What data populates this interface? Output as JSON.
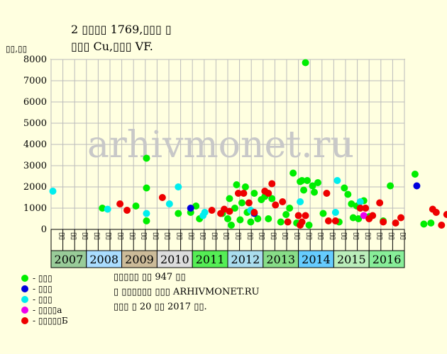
{
  "chart_data": {
    "type": "scatter",
    "title_lines": [
      "2 ▯▯▯▯ 1769,▯▯▯ ▯",
      "▯▯▯ Cu,▯▯▯ VF."
    ],
    "ylabel": "▯▯,▯▯",
    "ylim": [
      0,
      8000
    ],
    "yticks": [
      0,
      1000,
      2000,
      3000,
      4000,
      5000,
      6000,
      7000,
      8000
    ],
    "grid": true,
    "watermark": "arhivmonet.ru",
    "months": [
      "▯▯",
      "▯▯",
      "▯▯",
      "▯▯",
      "▯▯",
      "▯▯",
      "▯▯",
      "▯▯",
      "▯▯",
      "▯▯",
      "▯▯",
      "▯▯",
      "▯▯",
      "▯▯",
      "▯▯",
      "▯▯",
      "▯▯",
      "▯▯",
      "▯▯",
      "▯▯",
      "▯▯",
      "▯▯",
      "▯▯",
      "▯▯",
      "▯▯",
      "▯▯",
      "▯▯",
      "▯▯",
      "▯▯",
      "▯▯"
    ],
    "years": [
      {
        "label": "2007",
        "color": "#99cc99"
      },
      {
        "label": "2008",
        "color": "#aaddff"
      },
      {
        "label": "2009",
        "color": "#ccbb99"
      },
      {
        "label": "2010",
        "color": "#dddddd"
      },
      {
        "label": "2011",
        "color": "#55ee55"
      },
      {
        "label": "2012",
        "color": "#aaddee"
      },
      {
        "label": "2013",
        "color": "#88dd88"
      },
      {
        "label": "2014",
        "color": "#66ccff"
      },
      {
        "label": "2015",
        "color": "#bbeebb"
      },
      {
        "label": "2016",
        "color": "#88ee99"
      }
    ],
    "series": [
      {
        "name": "- ▯▯▯",
        "color": "#00ee00",
        "points": [
          [
            1.45,
            1000
          ],
          [
            2.4,
            1100
          ],
          [
            2.7,
            1950
          ],
          [
            2.7,
            3350
          ],
          [
            2.7,
            400
          ],
          [
            3.6,
            750
          ],
          [
            3.95,
            800
          ],
          [
            4.1,
            1100
          ],
          [
            4.2,
            500
          ],
          [
            4.85,
            750
          ],
          [
            5.0,
            500
          ],
          [
            5.05,
            1450
          ],
          [
            5.1,
            200
          ],
          [
            5.2,
            1000
          ],
          [
            5.25,
            2100
          ],
          [
            5.35,
            450
          ],
          [
            5.4,
            1250
          ],
          [
            5.5,
            2000
          ],
          [
            5.55,
            800
          ],
          [
            5.65,
            350
          ],
          [
            5.75,
            1700
          ],
          [
            5.85,
            500
          ],
          [
            5.95,
            1400
          ],
          [
            6.05,
            1550
          ],
          [
            6.15,
            500
          ],
          [
            6.25,
            1450
          ],
          [
            6.5,
            350
          ],
          [
            6.65,
            700
          ],
          [
            6.75,
            1000
          ],
          [
            6.85,
            2650
          ],
          [
            6.95,
            300
          ],
          [
            7.05,
            2250
          ],
          [
            7.1,
            2300
          ],
          [
            7.15,
            1850
          ],
          [
            7.2,
            7850
          ],
          [
            7.25,
            2300
          ],
          [
            7.3,
            200
          ],
          [
            7.4,
            2050
          ],
          [
            7.45,
            1750
          ],
          [
            7.55,
            2200
          ],
          [
            7.7,
            750
          ],
          [
            8.15,
            350
          ],
          [
            8.3,
            1950
          ],
          [
            8.4,
            1650
          ],
          [
            8.5,
            1200
          ],
          [
            8.55,
            550
          ],
          [
            8.65,
            1100
          ],
          [
            8.7,
            500
          ],
          [
            8.85,
            1350
          ],
          [
            9.0,
            600
          ],
          [
            9.4,
            400
          ],
          [
            9.6,
            2050
          ],
          [
            10.3,
            2600
          ],
          [
            10.55,
            250
          ],
          [
            10.75,
            300
          ]
        ]
      },
      {
        "name": "- ▯▯▯",
        "color": "#0000dd",
        "points": [
          [
            3.95,
            1000
          ],
          [
            5.75,
            750
          ],
          [
            10.35,
            2050
          ]
        ]
      },
      {
        "name": "- ▯▯▯",
        "color": "#00eeee",
        "points": [
          [
            0.05,
            1800
          ],
          [
            1.6,
            950
          ],
          [
            2.7,
            750
          ],
          [
            3.35,
            1200
          ],
          [
            3.6,
            2000
          ],
          [
            4.3,
            650
          ],
          [
            4.35,
            800
          ],
          [
            5.65,
            900
          ],
          [
            7.05,
            1300
          ],
          [
            8.05,
            800
          ],
          [
            8.1,
            2300
          ],
          [
            8.75,
            1300
          ]
        ]
      },
      {
        "name": "- ▯▯▯▯а",
        "color": "#ee00ee",
        "points": [
          [
            8.85,
            650
          ]
        ]
      },
      {
        "name": "- ▯▯▯▯▯Б",
        "color": "#ee0000",
        "points": [
          [
            1.95,
            1200
          ],
          [
            2.15,
            900
          ],
          [
            3.15,
            1500
          ],
          [
            4.55,
            900
          ],
          [
            4.8,
            750
          ],
          [
            4.9,
            950
          ],
          [
            5.05,
            850
          ],
          [
            5.3,
            1700
          ],
          [
            5.45,
            1700
          ],
          [
            5.6,
            1250
          ],
          [
            5.75,
            800
          ],
          [
            6.05,
            1800
          ],
          [
            6.15,
            1700
          ],
          [
            6.25,
            2150
          ],
          [
            6.35,
            1150
          ],
          [
            6.55,
            1300
          ],
          [
            6.7,
            350
          ],
          [
            7.0,
            650
          ],
          [
            7.05,
            200
          ],
          [
            7.1,
            350
          ],
          [
            7.2,
            650
          ],
          [
            7.8,
            1700
          ],
          [
            7.85,
            400
          ],
          [
            8.05,
            400
          ],
          [
            8.75,
            1000
          ],
          [
            8.9,
            1000
          ],
          [
            9.0,
            500
          ],
          [
            9.1,
            650
          ],
          [
            9.3,
            1250
          ],
          [
            9.4,
            350
          ],
          [
            9.75,
            300
          ],
          [
            9.9,
            550
          ],
          [
            10.8,
            950
          ],
          [
            10.9,
            800
          ],
          [
            11.05,
            200
          ],
          [
            11.2,
            700
          ],
          [
            11.3,
            650
          ],
          [
            11.55,
            450
          ],
          [
            11.95,
            1100
          ],
          [
            12.4,
            1300
          ],
          [
            13.25,
            400
          ],
          [
            13.35,
            200
          ],
          [
            13.45,
            700
          ],
          [
            13.5,
            900
          ],
          [
            13.7,
            2650
          ],
          [
            13.75,
            400
          ],
          [
            14.05,
            500
          ],
          [
            14.35,
            1000
          ],
          [
            14.65,
            350
          ],
          [
            14.85,
            600
          ]
        ]
      }
    ],
    "notes": [
      "▯▯▯▯▯ ▯▯ 947 ▯▯",
      "▯ ▯▯▯▯▯▯ ▯▯▯ ARHIVMONET.RU",
      "▯▯▯ ▯ 20 ▯▯ 2017 ▯▯."
    ]
  }
}
